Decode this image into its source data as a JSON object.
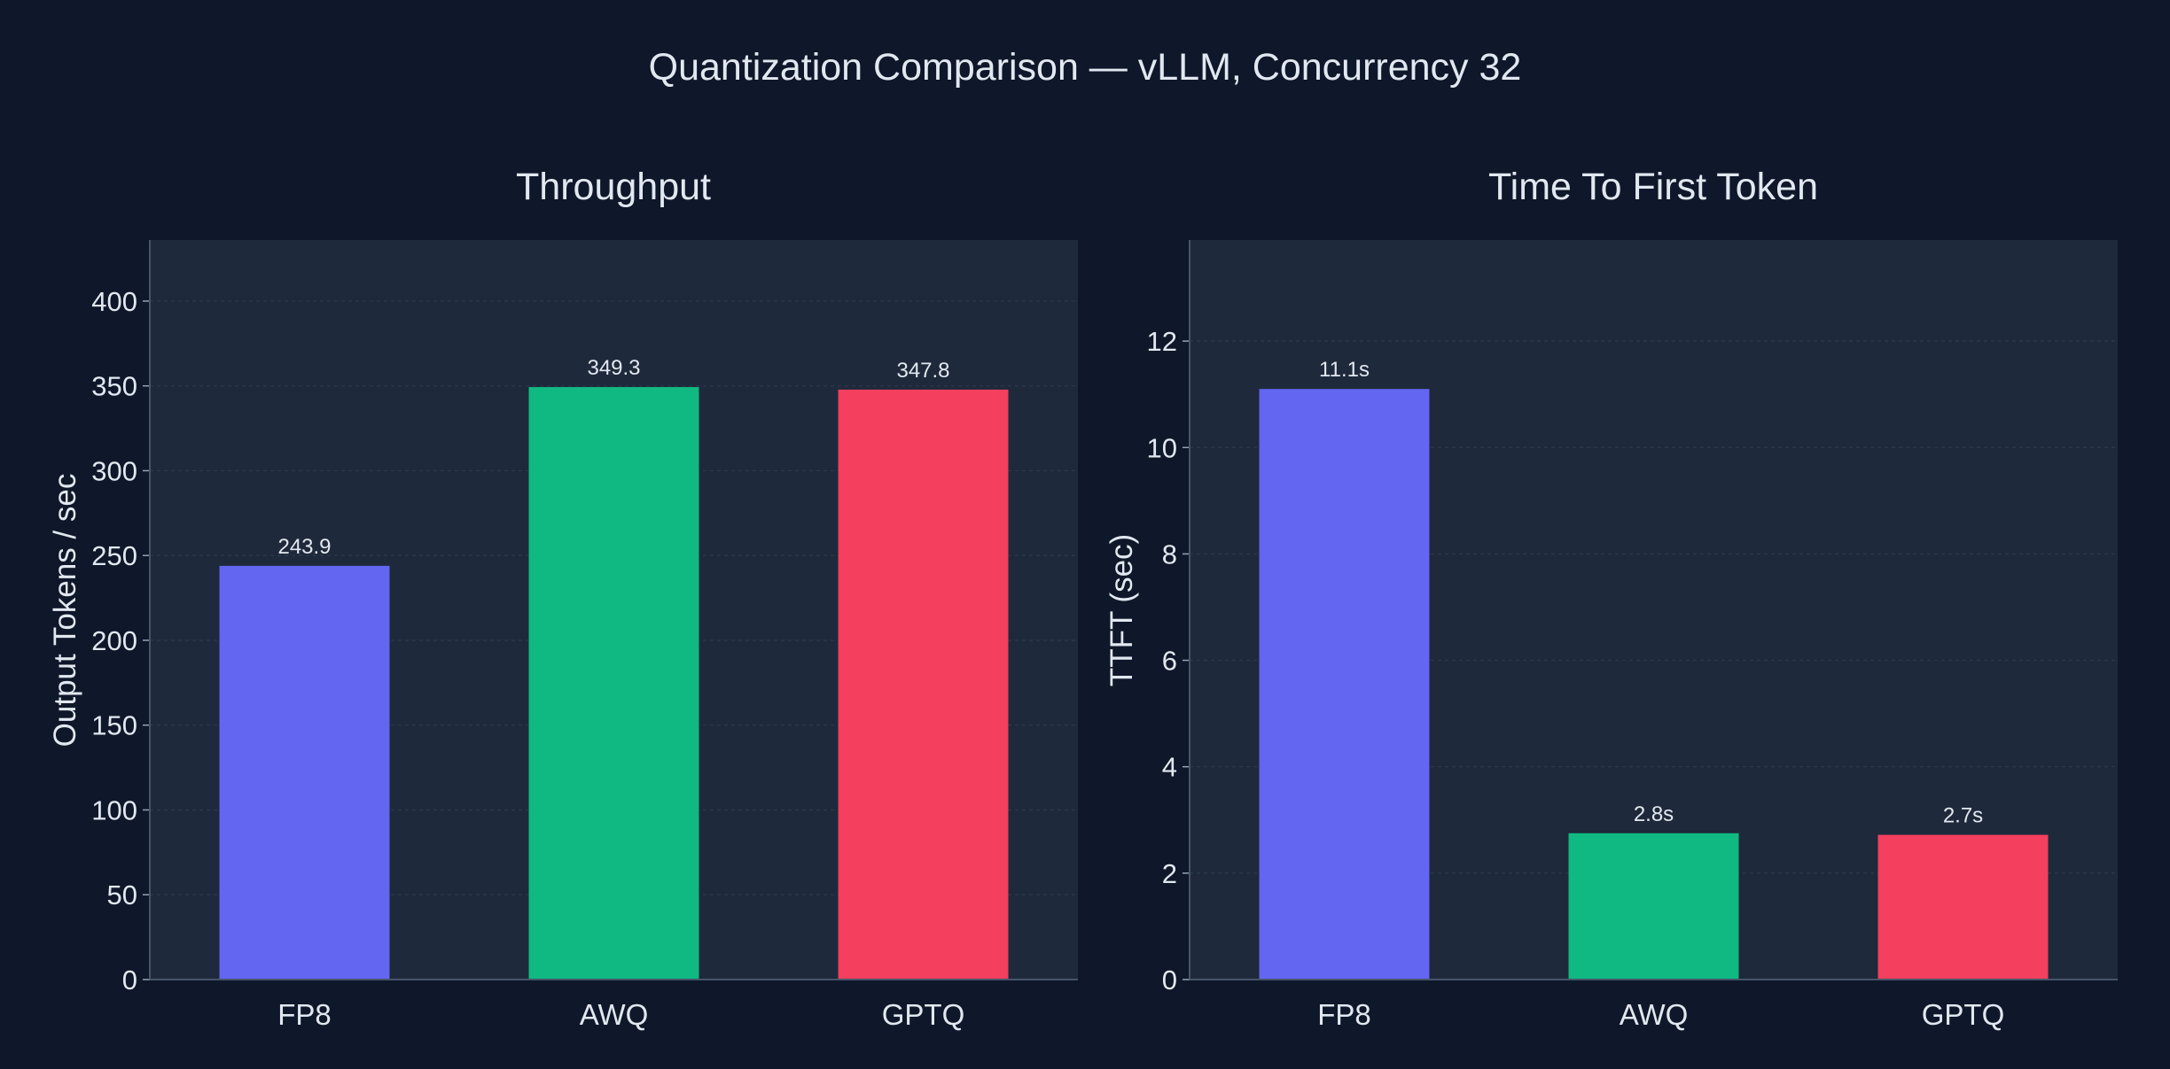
{
  "title": "Quantization Comparison — vLLM, Concurrency 32",
  "colors": {
    "background": "#0f172a",
    "plot_background": "#1e293b",
    "text": "#e2e8f0",
    "grid": "#334155"
  },
  "chart_data": [
    {
      "type": "bar",
      "title": "Throughput",
      "xlabel": "",
      "ylabel": "Output Tokens / sec",
      "categories": [
        "FP8",
        "AWQ",
        "GPTQ"
      ],
      "values": [
        243.9,
        349.3,
        347.8
      ],
      "data_labels": [
        "243.9",
        "349.3",
        "347.8"
      ],
      "bar_colors": [
        "#6366f1",
        "#10b981",
        "#f43f5e"
      ],
      "ylim": [
        0,
        436
      ],
      "yticks": [
        0,
        50,
        100,
        150,
        200,
        250,
        300,
        350,
        400
      ],
      "grid": true,
      "grid_axis": "y"
    },
    {
      "type": "bar",
      "title": "Time To First Token",
      "xlabel": "",
      "ylabel": "TTFT (sec)",
      "categories": [
        "FP8",
        "AWQ",
        "GPTQ"
      ],
      "values": [
        11.1,
        2.75,
        2.72
      ],
      "data_labels": [
        "11.1s",
        "2.8s",
        "2.7s"
      ],
      "bar_colors": [
        "#6366f1",
        "#10b981",
        "#f43f5e"
      ],
      "ylim": [
        0,
        13.9
      ],
      "yticks": [
        0,
        2,
        4,
        6,
        8,
        10,
        12
      ],
      "grid": true,
      "grid_axis": "y"
    }
  ]
}
